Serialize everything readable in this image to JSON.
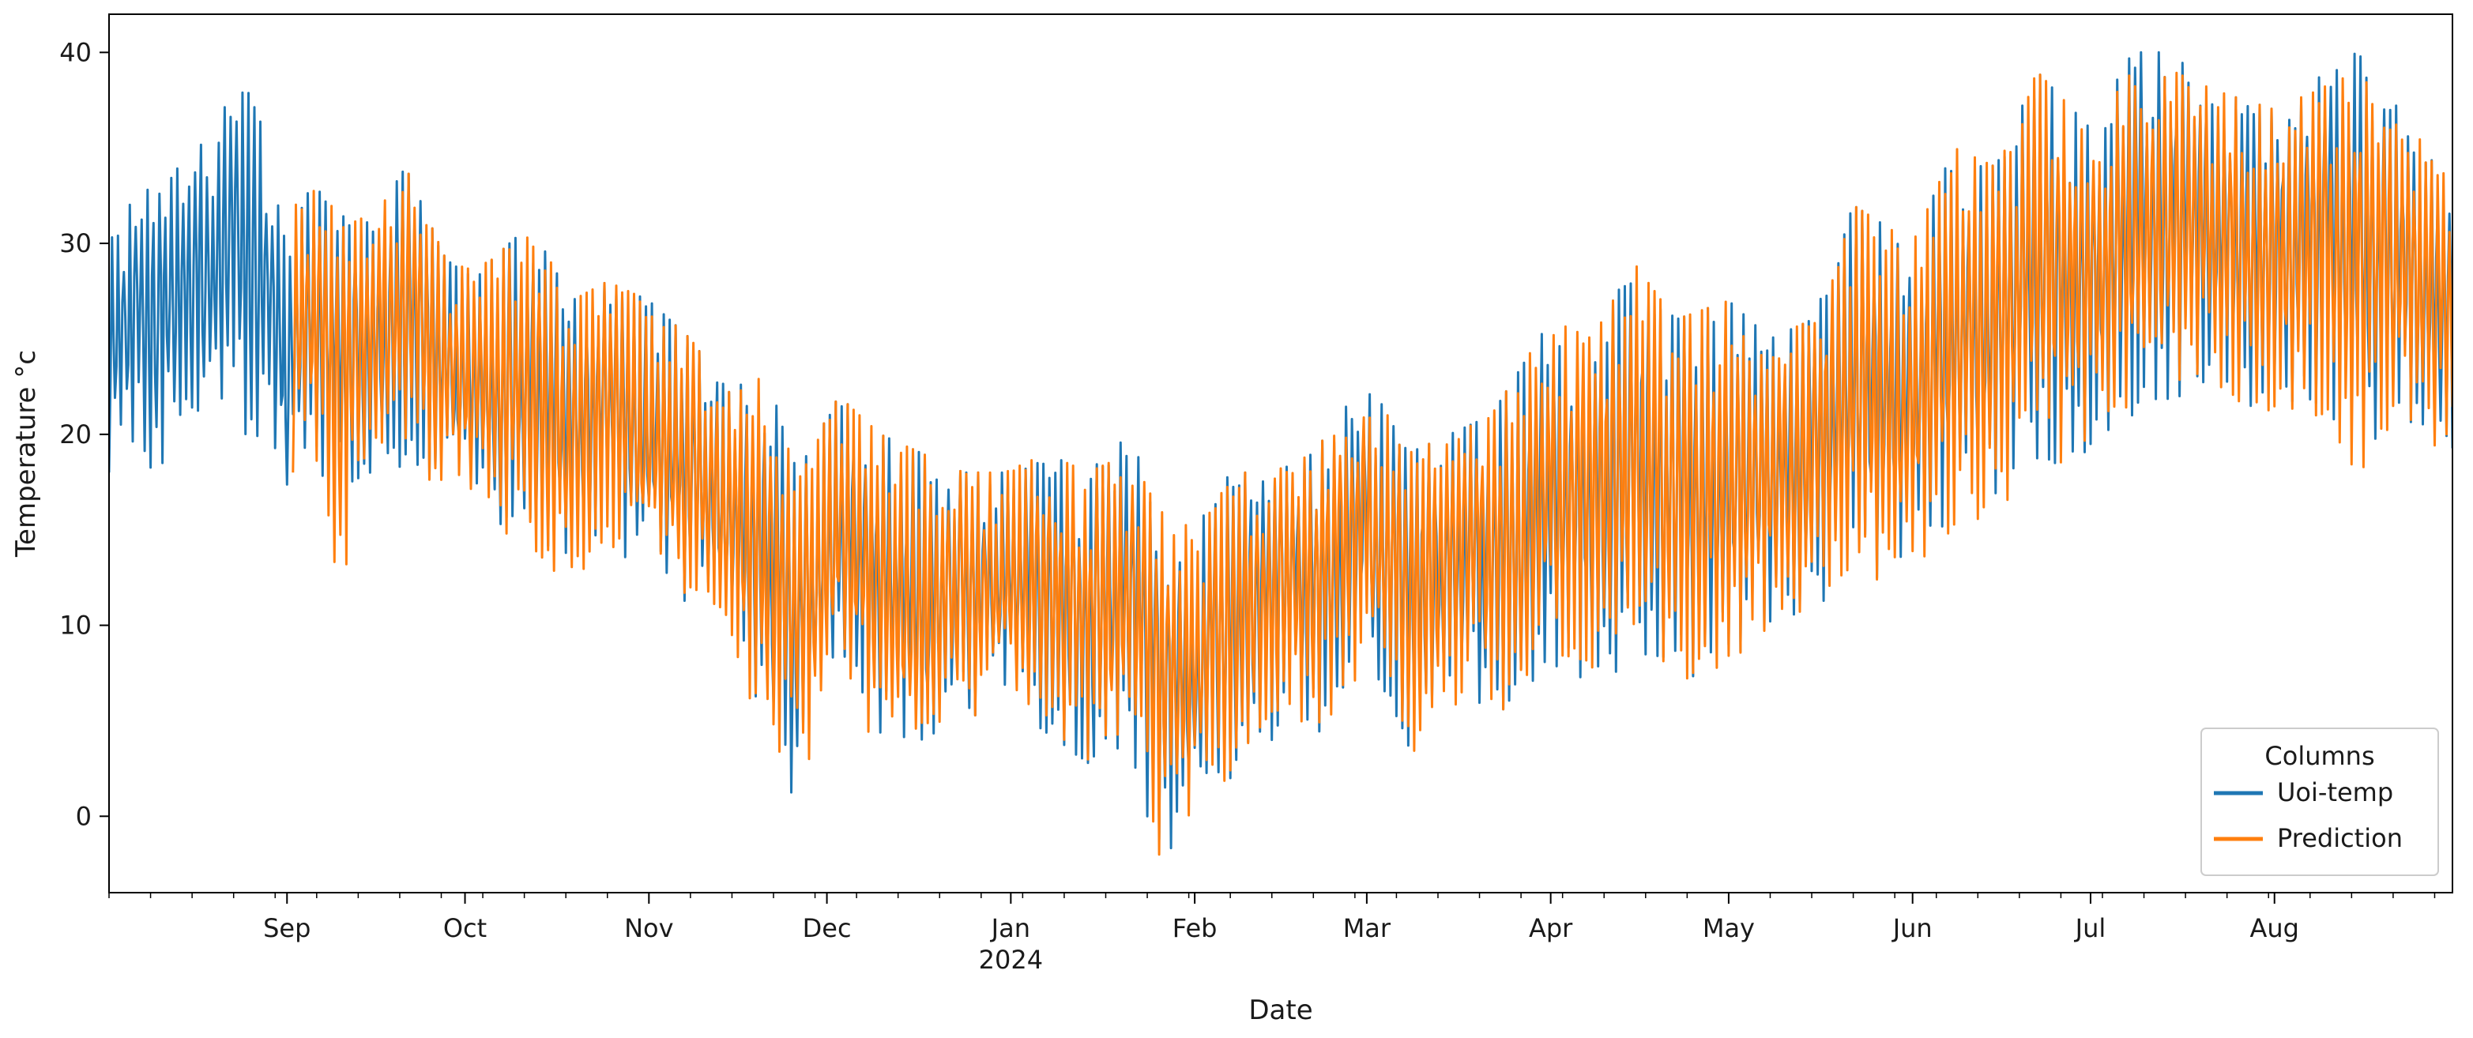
{
  "chart_data": {
    "type": "line",
    "xlabel": "Date",
    "ylabel": "Temperature °c",
    "x_range": [
      "2023-08-02",
      "2024-08-31"
    ],
    "ylim": [
      -4,
      42
    ],
    "y_ticks": [
      0,
      10,
      20,
      30,
      40
    ],
    "x_ticks": [
      {
        "date": "2023-09-01",
        "label": "Sep",
        "sublabel": ""
      },
      {
        "date": "2023-10-01",
        "label": "Oct",
        "sublabel": ""
      },
      {
        "date": "2023-11-01",
        "label": "Nov",
        "sublabel": ""
      },
      {
        "date": "2023-12-01",
        "label": "Dec",
        "sublabel": ""
      },
      {
        "date": "2024-01-01",
        "label": "Jan",
        "sublabel": "2024"
      },
      {
        "date": "2024-02-01",
        "label": "Feb",
        "sublabel": ""
      },
      {
        "date": "2024-03-01",
        "label": "Mar",
        "sublabel": ""
      },
      {
        "date": "2024-04-01",
        "label": "Apr",
        "sublabel": ""
      },
      {
        "date": "2024-05-01",
        "label": "May",
        "sublabel": ""
      },
      {
        "date": "2024-06-01",
        "label": "Jun",
        "sublabel": ""
      },
      {
        "date": "2024-07-01",
        "label": "Jul",
        "sublabel": ""
      },
      {
        "date": "2024-08-01",
        "label": "Aug",
        "sublabel": ""
      }
    ],
    "grid": false,
    "legend": {
      "title": "Columns",
      "placement": "lower-right"
    },
    "series": [
      {
        "name": "Uoi-temp",
        "color": "#1f77b4",
        "date_range": [
          "2023-08-02",
          "2024-08-31"
        ],
        "envelope": [
          {
            "date": "2023-08-02",
            "min": 18,
            "max": 31
          },
          {
            "date": "2023-08-08",
            "min": 18,
            "max": 33
          },
          {
            "date": "2023-08-14",
            "min": 19,
            "max": 34
          },
          {
            "date": "2023-08-20",
            "min": 20,
            "max": 36
          },
          {
            "date": "2023-08-24",
            "min": 20,
            "max": 39
          },
          {
            "date": "2023-08-28",
            "min": 19,
            "max": 36
          },
          {
            "date": "2023-09-01",
            "min": 16,
            "max": 30
          },
          {
            "date": "2023-09-05",
            "min": 18,
            "max": 33
          },
          {
            "date": "2023-09-10",
            "min": 17,
            "max": 32
          },
          {
            "date": "2023-09-15",
            "min": 18,
            "max": 31
          },
          {
            "date": "2023-09-21",
            "min": 18,
            "max": 34
          },
          {
            "date": "2023-09-28",
            "min": 17,
            "max": 29
          },
          {
            "date": "2023-10-05",
            "min": 15,
            "max": 29
          },
          {
            "date": "2023-10-12",
            "min": 14,
            "max": 31
          },
          {
            "date": "2023-10-19",
            "min": 13,
            "max": 27
          },
          {
            "date": "2023-10-25",
            "min": 14,
            "max": 28
          },
          {
            "date": "2023-11-01",
            "min": 13,
            "max": 27
          },
          {
            "date": "2023-11-08",
            "min": 11,
            "max": 25
          },
          {
            "date": "2023-11-15",
            "min": 9,
            "max": 22
          },
          {
            "date": "2023-11-20",
            "min": 2.5,
            "max": 24
          },
          {
            "date": "2023-11-26",
            "min": 1,
            "max": 18
          },
          {
            "date": "2023-12-03",
            "min": 8,
            "max": 22
          },
          {
            "date": "2023-12-10",
            "min": 3,
            "max": 20
          },
          {
            "date": "2023-12-17",
            "min": 1.5,
            "max": 19
          },
          {
            "date": "2023-12-24",
            "min": 5,
            "max": 18
          },
          {
            "date": "2023-12-31",
            "min": 6,
            "max": 18
          },
          {
            "date": "2024-01-07",
            "min": 4,
            "max": 19
          },
          {
            "date": "2024-01-14",
            "min": 1,
            "max": 18
          },
          {
            "date": "2024-01-21",
            "min": 3,
            "max": 20
          },
          {
            "date": "2024-01-26",
            "min": -2,
            "max": 16
          },
          {
            "date": "2024-02-01",
            "min": -1,
            "max": 15
          },
          {
            "date": "2024-02-07",
            "min": 2,
            "max": 18
          },
          {
            "date": "2024-02-14",
            "min": 4,
            "max": 18
          },
          {
            "date": "2024-02-21",
            "min": 4,
            "max": 19
          },
          {
            "date": "2024-03-01",
            "min": 8,
            "max": 23
          },
          {
            "date": "2024-03-08",
            "min": 3,
            "max": 19
          },
          {
            "date": "2024-03-15",
            "min": 6,
            "max": 20
          },
          {
            "date": "2024-03-22",
            "min": 5,
            "max": 21
          },
          {
            "date": "2024-04-01",
            "min": 8,
            "max": 26
          },
          {
            "date": "2024-04-08",
            "min": 7,
            "max": 25
          },
          {
            "date": "2024-04-15",
            "min": 8,
            "max": 29
          },
          {
            "date": "2024-04-22",
            "min": 7,
            "max": 26
          },
          {
            "date": "2024-05-01",
            "min": 8,
            "max": 27
          },
          {
            "date": "2024-05-08",
            "min": 10,
            "max": 25
          },
          {
            "date": "2024-05-15",
            "min": 11,
            "max": 26
          },
          {
            "date": "2024-05-22",
            "min": 12,
            "max": 32
          },
          {
            "date": "2024-06-01",
            "min": 13,
            "max": 30
          },
          {
            "date": "2024-06-08",
            "min": 15,
            "max": 35
          },
          {
            "date": "2024-06-15",
            "min": 16,
            "max": 34
          },
          {
            "date": "2024-06-22",
            "min": 18,
            "max": 39
          },
          {
            "date": "2024-07-01",
            "min": 19,
            "max": 36
          },
          {
            "date": "2024-07-08",
            "min": 21,
            "max": 40
          },
          {
            "date": "2024-07-15",
            "min": 22,
            "max": 40
          },
          {
            "date": "2024-07-22",
            "min": 22,
            "max": 38
          },
          {
            "date": "2024-08-01",
            "min": 21,
            "max": 37
          },
          {
            "date": "2024-08-08",
            "min": 21,
            "max": 39
          },
          {
            "date": "2024-08-15",
            "min": 19,
            "max": 40
          },
          {
            "date": "2024-08-22",
            "min": 20,
            "max": 37
          },
          {
            "date": "2024-08-31",
            "min": 19,
            "max": 33
          }
        ]
      },
      {
        "name": "Prediction",
        "color": "#ff7f0e",
        "date_range": [
          "2023-09-02",
          "2024-08-31"
        ],
        "envelope": [
          {
            "date": "2023-09-02",
            "min": 18,
            "max": 33
          },
          {
            "date": "2023-09-05",
            "min": 18,
            "max": 33
          },
          {
            "date": "2023-09-10",
            "min": 12,
            "max": 32
          },
          {
            "date": "2023-09-15",
            "min": 18,
            "max": 31
          },
          {
            "date": "2023-09-21",
            "min": 18,
            "max": 34
          },
          {
            "date": "2023-09-28",
            "min": 17,
            "max": 29
          },
          {
            "date": "2023-10-05",
            "min": 15,
            "max": 29
          },
          {
            "date": "2023-10-12",
            "min": 14,
            "max": 31
          },
          {
            "date": "2023-10-19",
            "min": 12,
            "max": 27
          },
          {
            "date": "2023-10-25",
            "min": 14,
            "max": 28
          },
          {
            "date": "2023-11-01",
            "min": 12,
            "max": 27
          },
          {
            "date": "2023-11-08",
            "min": 11,
            "max": 25
          },
          {
            "date": "2023-11-15",
            "min": 9,
            "max": 22
          },
          {
            "date": "2023-11-20",
            "min": 3,
            "max": 23
          },
          {
            "date": "2023-11-26",
            "min": 1,
            "max": 18
          },
          {
            "date": "2023-12-03",
            "min": 8,
            "max": 22
          },
          {
            "date": "2023-12-10",
            "min": 3,
            "max": 20
          },
          {
            "date": "2023-12-17",
            "min": 1.5,
            "max": 19
          },
          {
            "date": "2023-12-24",
            "min": 5,
            "max": 18
          },
          {
            "date": "2023-12-31",
            "min": 6,
            "max": 18
          },
          {
            "date": "2024-01-07",
            "min": 4,
            "max": 19
          },
          {
            "date": "2024-01-14",
            "min": 1,
            "max": 18
          },
          {
            "date": "2024-01-21",
            "min": 3,
            "max": 19
          },
          {
            "date": "2024-01-26",
            "min": -2,
            "max": 16
          },
          {
            "date": "2024-02-01",
            "min": -1,
            "max": 15
          },
          {
            "date": "2024-02-07",
            "min": 2,
            "max": 18
          },
          {
            "date": "2024-02-14",
            "min": 4,
            "max": 18
          },
          {
            "date": "2024-02-21",
            "min": 4,
            "max": 19
          },
          {
            "date": "2024-03-01",
            "min": 8,
            "max": 23
          },
          {
            "date": "2024-03-08",
            "min": 3,
            "max": 19
          },
          {
            "date": "2024-03-15",
            "min": 6,
            "max": 20
          },
          {
            "date": "2024-03-22",
            "min": 5,
            "max": 21
          },
          {
            "date": "2024-04-01",
            "min": 8,
            "max": 26
          },
          {
            "date": "2024-04-08",
            "min": 7,
            "max": 25
          },
          {
            "date": "2024-04-15",
            "min": 8,
            "max": 29
          },
          {
            "date": "2024-04-22",
            "min": 7,
            "max": 26
          },
          {
            "date": "2024-05-01",
            "min": 8,
            "max": 27
          },
          {
            "date": "2024-05-08",
            "min": 10,
            "max": 25
          },
          {
            "date": "2024-05-15",
            "min": 11,
            "max": 26
          },
          {
            "date": "2024-05-22",
            "min": 12,
            "max": 32
          },
          {
            "date": "2024-06-01",
            "min": 13,
            "max": 30
          },
          {
            "date": "2024-06-08",
            "min": 15,
            "max": 35
          },
          {
            "date": "2024-06-15",
            "min": 16,
            "max": 34
          },
          {
            "date": "2024-06-22",
            "min": 18,
            "max": 39
          },
          {
            "date": "2024-07-01",
            "min": 19,
            "max": 36
          },
          {
            "date": "2024-07-08",
            "min": 21,
            "max": 39
          },
          {
            "date": "2024-07-15",
            "min": 22,
            "max": 39
          },
          {
            "date": "2024-07-22",
            "min": 22,
            "max": 38
          },
          {
            "date": "2024-08-01",
            "min": 21,
            "max": 37
          },
          {
            "date": "2024-08-08",
            "min": 21,
            "max": 38
          },
          {
            "date": "2024-08-15",
            "min": 18,
            "max": 39
          },
          {
            "date": "2024-08-22",
            "min": 20,
            "max": 37
          },
          {
            "date": "2024-08-31",
            "min": 19,
            "max": 33
          }
        ]
      }
    ]
  }
}
